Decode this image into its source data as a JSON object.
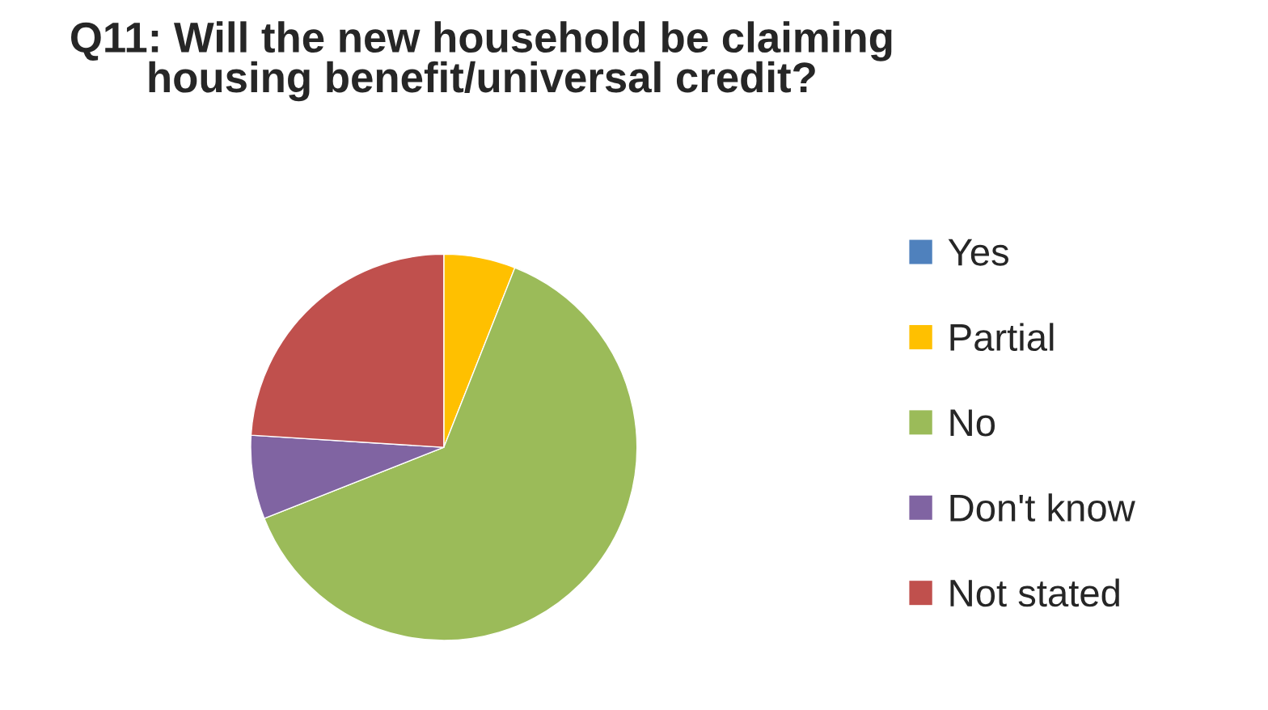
{
  "chart_data": {
    "type": "pie",
    "title": "Q11: Will the new household be claiming housing benefit/universal credit?",
    "categories": [
      "Yes",
      "Partial",
      "No",
      "Don't know",
      "Not stated"
    ],
    "values": [
      0,
      6,
      63,
      7,
      24
    ],
    "colors": [
      "#4f81bd",
      "#ffc000",
      "#9bbb59",
      "#8064a2",
      "#c0504d"
    ],
    "legend": "right"
  }
}
